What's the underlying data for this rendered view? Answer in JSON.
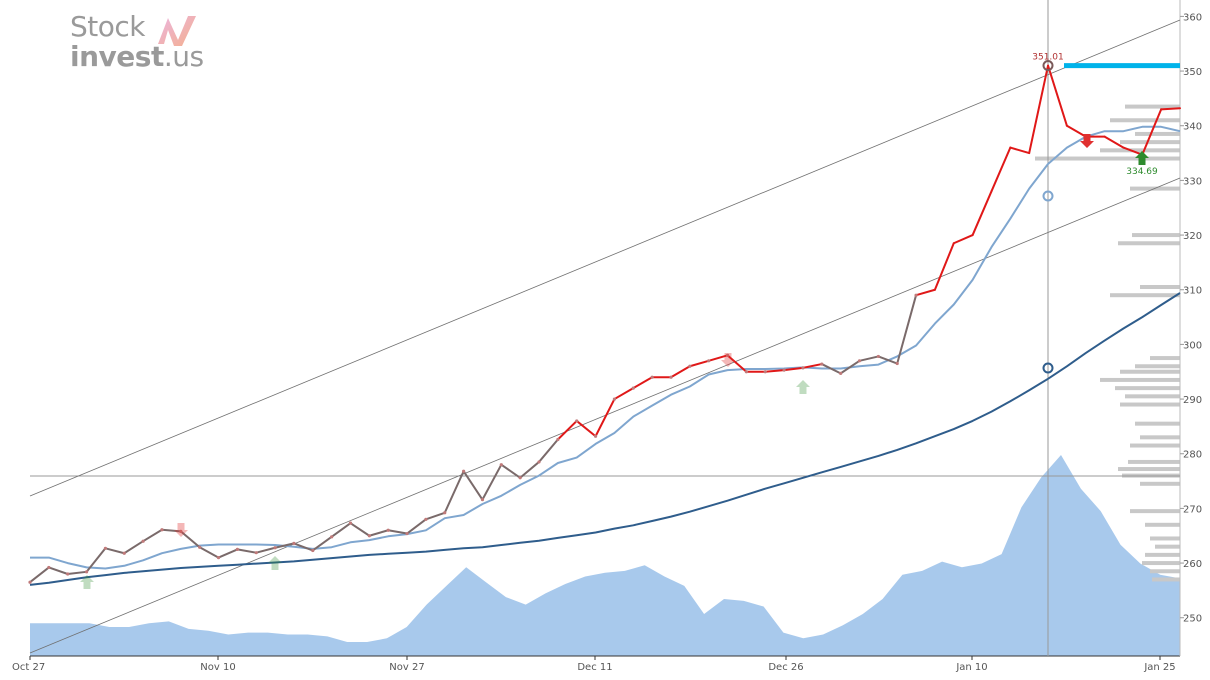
{
  "logo": {
    "word1": "Stock",
    "word2_bold": "invest",
    "word2_rest": ".us"
  },
  "colors": {
    "price_up": "#e01818",
    "price_neutral": "#7a6a6a",
    "short_ma": "#7fa6cf",
    "long_ma": "#2f5d8c",
    "volume": "#a8c9ec",
    "channel": "#707070",
    "target": "#00b3ea",
    "volume_profile": "#c8c8c8",
    "buy": "#2e8b2e",
    "sell": "#e03030"
  },
  "chart_data": {
    "type": "line",
    "y_ticks": [
      "250",
      "260",
      "270",
      "280",
      "290",
      "300",
      "310",
      "320",
      "330",
      "340",
      "350",
      "360"
    ],
    "x_ticks": [
      "Oct 27",
      "Nov 10",
      "Nov 27",
      "Dec 11",
      "Dec 26",
      "Jan 10",
      "Jan 25"
    ],
    "ylim": [
      243,
      363
    ],
    "series": [
      {
        "key": "price",
        "values": [
          256.5,
          259.2,
          258.0,
          258.4,
          262.7,
          261.8,
          264.0,
          266.1,
          265.8,
          262.9,
          261.0,
          262.5,
          261.9,
          262.8,
          263.6,
          262.3,
          264.8,
          267.3,
          265.0,
          266.0,
          265.4,
          268.0,
          269.2,
          276.8,
          271.6,
          278.0,
          275.6,
          278.5,
          282.6,
          286.0,
          283.2,
          290.0,
          292.0,
          294.0,
          294.0,
          296.0,
          297.0,
          298.0,
          295.0,
          295.0,
          295.3,
          295.7,
          296.4,
          294.7,
          297.0,
          297.8,
          296.5,
          309.0,
          310.0,
          318.5,
          320.0,
          328.0,
          336.0,
          335.0,
          351.0,
          340.0,
          338.0,
          338.0,
          336.0,
          334.7,
          343.0,
          343.2
        ]
      },
      {
        "key": "short_ma",
        "values": [
          261.0,
          261.0,
          260.0,
          259.2,
          259.0,
          259.5,
          260.5,
          261.8,
          262.6,
          263.2,
          263.4,
          263.4,
          263.4,
          263.3,
          263.0,
          262.6,
          262.9,
          263.8,
          264.2,
          264.9,
          265.3,
          266.0,
          268.2,
          268.8,
          270.8,
          272.3,
          274.3,
          276.0,
          278.3,
          279.3,
          281.8,
          283.8,
          286.8,
          288.8,
          290.8,
          292.3,
          294.5,
          295.3,
          295.5,
          295.5,
          295.6,
          295.8,
          295.6,
          295.6,
          296.0,
          296.3,
          297.8,
          299.8,
          303.8,
          307.3,
          311.8,
          317.8,
          323.0,
          328.5,
          333.0,
          336.0,
          338.0,
          339.0,
          339.0,
          339.8,
          339.8,
          339.0
        ]
      },
      {
        "key": "long_ma",
        "values": [
          256.0,
          256.4,
          256.9,
          257.4,
          257.8,
          258.2,
          258.5,
          258.8,
          259.1,
          259.3,
          259.5,
          259.7,
          259.9,
          260.1,
          260.3,
          260.6,
          260.9,
          261.2,
          261.5,
          261.7,
          261.9,
          262.1,
          262.4,
          262.7,
          262.9,
          263.3,
          263.7,
          264.1,
          264.6,
          265.1,
          265.6,
          266.3,
          266.9,
          267.7,
          268.5,
          269.4,
          270.4,
          271.4,
          272.5,
          273.6,
          274.6,
          275.6,
          276.6,
          277.6,
          278.6,
          279.6,
          280.7,
          281.9,
          283.2,
          284.5,
          286.0,
          287.7,
          289.6,
          291.6,
          293.7,
          296.0,
          298.4,
          300.7,
          302.9,
          305.0,
          307.2,
          309.4
        ]
      },
      {
        "key": "volume",
        "values": [
          0.1,
          0.1,
          0.1,
          0.1,
          0.08,
          0.08,
          0.1,
          0.11,
          0.07,
          0.06,
          0.04,
          0.05,
          0.05,
          0.04,
          0.04,
          0.03,
          0.0,
          0.0,
          0.02,
          0.08,
          0.2,
          0.3,
          0.4,
          0.32,
          0.24,
          0.2,
          0.26,
          0.31,
          0.35,
          0.37,
          0.38,
          0.41,
          0.35,
          0.3,
          0.15,
          0.23,
          0.22,
          0.19,
          0.05,
          0.02,
          0.04,
          0.09,
          0.15,
          0.23,
          0.36,
          0.38,
          0.43,
          0.4,
          0.42,
          0.47,
          0.72,
          0.88,
          1.0,
          0.82,
          0.7,
          0.52,
          0.42,
          0.36,
          0.34
        ]
      }
    ],
    "annotations": {
      "high": {
        "label": "351.01",
        "value": 351.01
      },
      "low": {
        "label": "334.69",
        "value": 334.69
      },
      "target_level": 351
    }
  }
}
